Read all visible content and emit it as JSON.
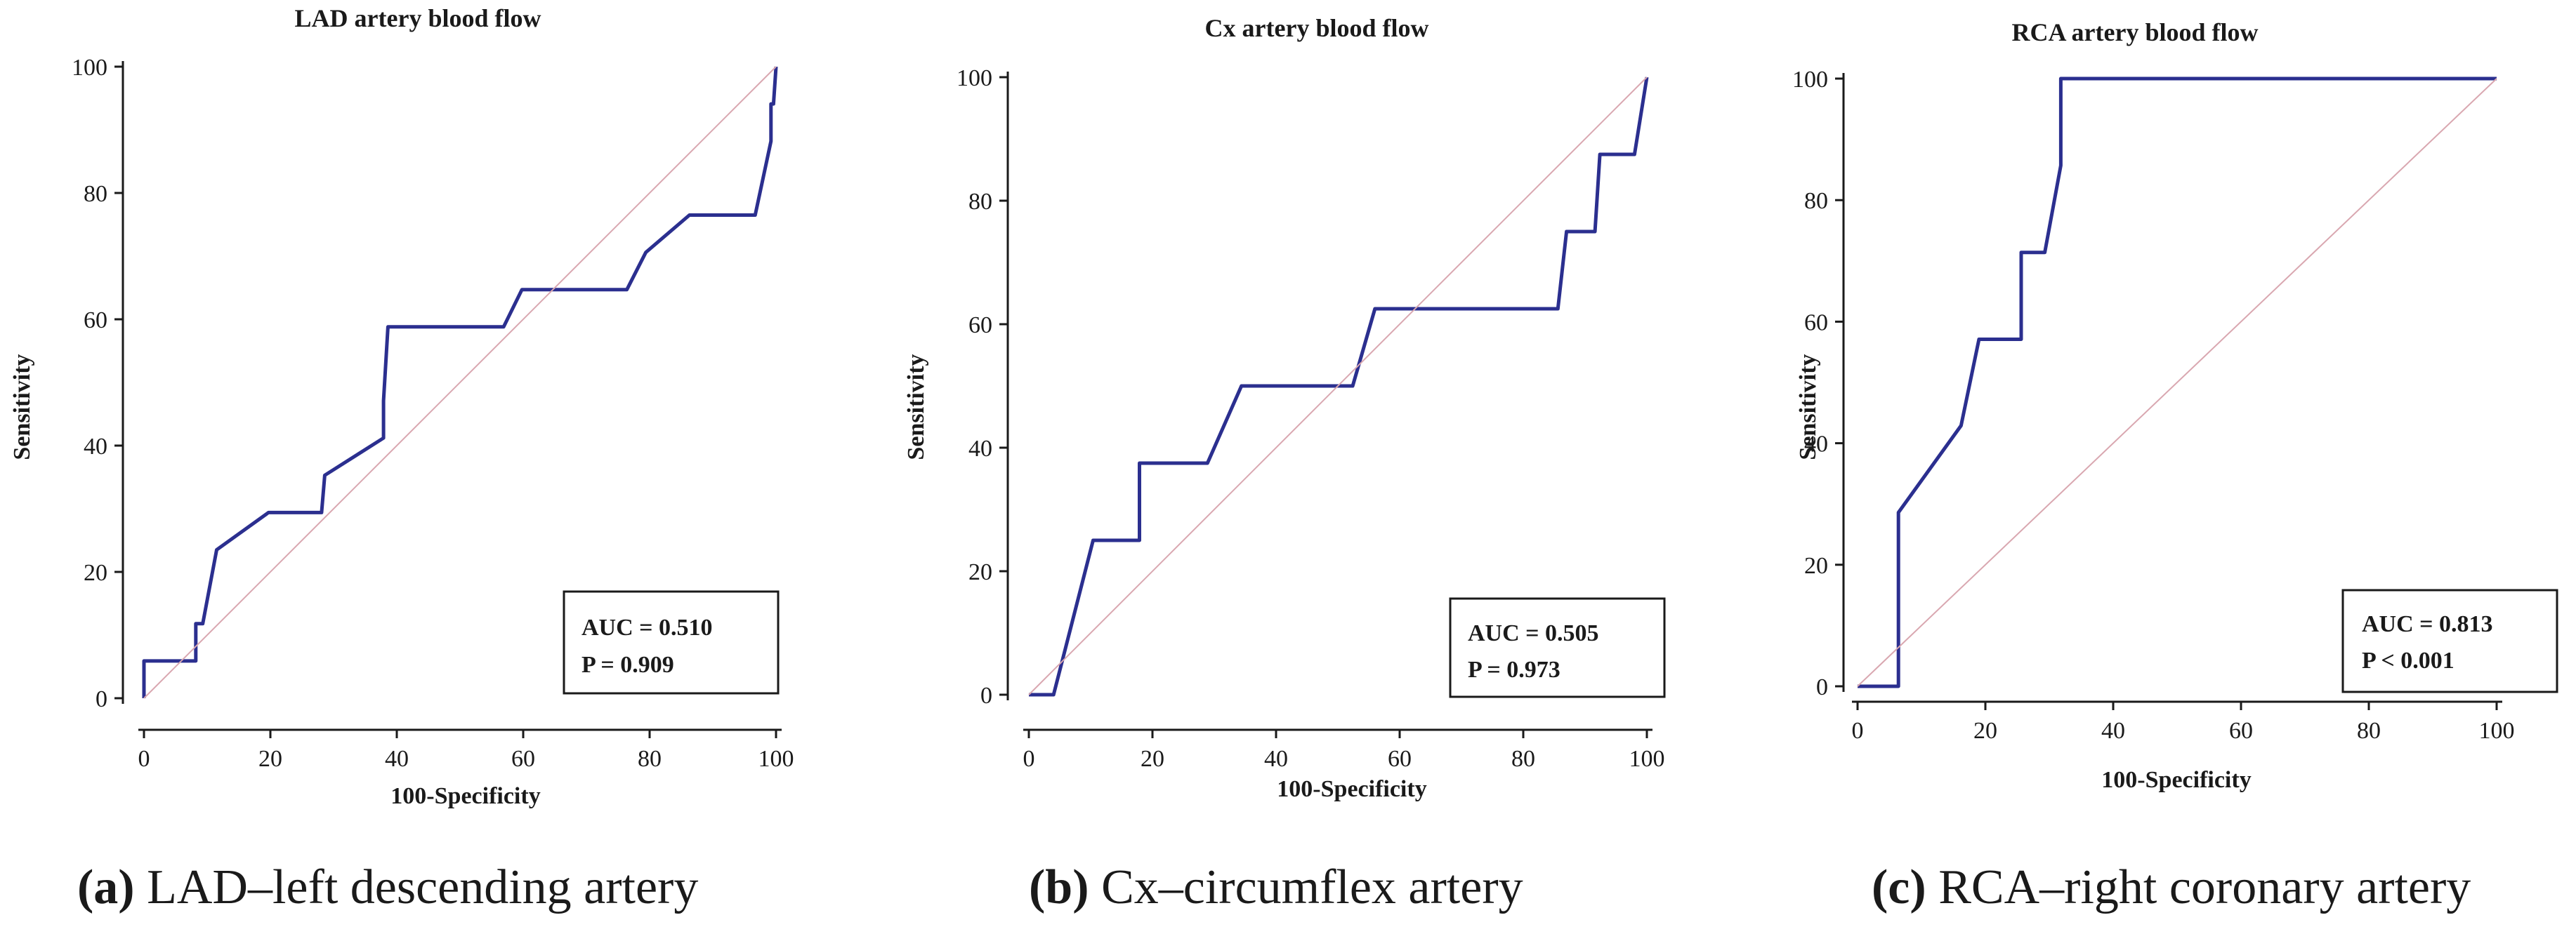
{
  "colors": {
    "roc_line": "#2b2f8f",
    "diagonal": "#d9a7b0",
    "axis": "#1a1a1a"
  },
  "chart_data": [
    {
      "type": "line",
      "title": "LAD artery blood flow",
      "xlabel": "100-Specificity",
      "ylabel": "Sensitivity",
      "xlim": [
        0,
        100
      ],
      "ylim": [
        0,
        100
      ],
      "xticks": [
        0,
        20,
        40,
        60,
        80,
        100
      ],
      "yticks": [
        0,
        20,
        40,
        60,
        80,
        100
      ],
      "series": [
        {
          "name": "ROC",
          "x": [
            0,
            0,
            8.2,
            8.2,
            9.3,
            11.5,
            19.7,
            28.1,
            28.6,
            37.9,
            37.9,
            38.6,
            56.9,
            59.8,
            76.4,
            79.4,
            86.3,
            96.7,
            99.2,
            99.2,
            99.6,
            100
          ],
          "y": [
            0,
            5.9,
            5.9,
            11.8,
            11.8,
            23.5,
            29.4,
            29.4,
            35.3,
            41.2,
            47.1,
            58.8,
            58.8,
            64.7,
            64.7,
            70.6,
            76.5,
            76.5,
            88.2,
            94.1,
            94.1,
            100
          ]
        },
        {
          "name": "Reference line",
          "x": [
            0,
            100
          ],
          "y": [
            0,
            100
          ]
        }
      ],
      "annotation": {
        "auc": "AUC = 0.510",
        "p": "P = 0.909"
      },
      "caption": {
        "label": "(a)",
        "text": "LAD–left descending artery"
      }
    },
    {
      "type": "line",
      "title": "Cx artery blood flow",
      "xlabel": "100-Specificity",
      "ylabel": "Sensitivity",
      "xlim": [
        0,
        100
      ],
      "ylim": [
        0,
        100
      ],
      "xticks": [
        0,
        20,
        40,
        60,
        80,
        100
      ],
      "yticks": [
        0,
        20,
        40,
        60,
        80,
        100
      ],
      "series": [
        {
          "name": "ROC",
          "x": [
            0,
            4.0,
            10.4,
            17.9,
            17.9,
            28.9,
            34.4,
            52.4,
            56.0,
            85.6,
            87.0,
            91.6,
            92.4,
            98.0,
            100
          ],
          "y": [
            0,
            0,
            25.0,
            25.0,
            37.5,
            37.5,
            50.0,
            50.0,
            62.5,
            62.5,
            75.0,
            75.0,
            87.5,
            87.5,
            100
          ]
        },
        {
          "name": "Reference line",
          "x": [
            0,
            100
          ],
          "y": [
            0,
            100
          ]
        }
      ],
      "annotation": {
        "auc": "AUC = 0.505",
        "p": "P = 0.973"
      },
      "caption": {
        "label": "(b)",
        "text": "Cx–circumflex artery"
      }
    },
    {
      "type": "line",
      "title": "RCA artery blood flow",
      "xlabel": "100-Specificity",
      "ylabel": "Sensitivity",
      "xlim": [
        0,
        100
      ],
      "ylim": [
        0,
        100
      ],
      "xticks": [
        0,
        20,
        40,
        60,
        80,
        100
      ],
      "yticks": [
        0,
        20,
        40,
        60,
        80,
        100
      ],
      "series": [
        {
          "name": "ROC",
          "x": [
            0,
            6.4,
            6.4,
            16.2,
            19.0,
            25.6,
            25.6,
            29.3,
            31.8,
            31.8,
            100
          ],
          "y": [
            0,
            0,
            28.6,
            42.9,
            57.1,
            57.1,
            71.4,
            71.4,
            85.7,
            100,
            100
          ]
        },
        {
          "name": "Reference line",
          "x": [
            0,
            100
          ],
          "y": [
            0,
            100
          ]
        }
      ],
      "annotation": {
        "auc": "AUC = 0.813",
        "p": "P < 0.001"
      },
      "caption": {
        "label": "(c)",
        "text": "RCA–right coronary artery"
      }
    }
  ]
}
